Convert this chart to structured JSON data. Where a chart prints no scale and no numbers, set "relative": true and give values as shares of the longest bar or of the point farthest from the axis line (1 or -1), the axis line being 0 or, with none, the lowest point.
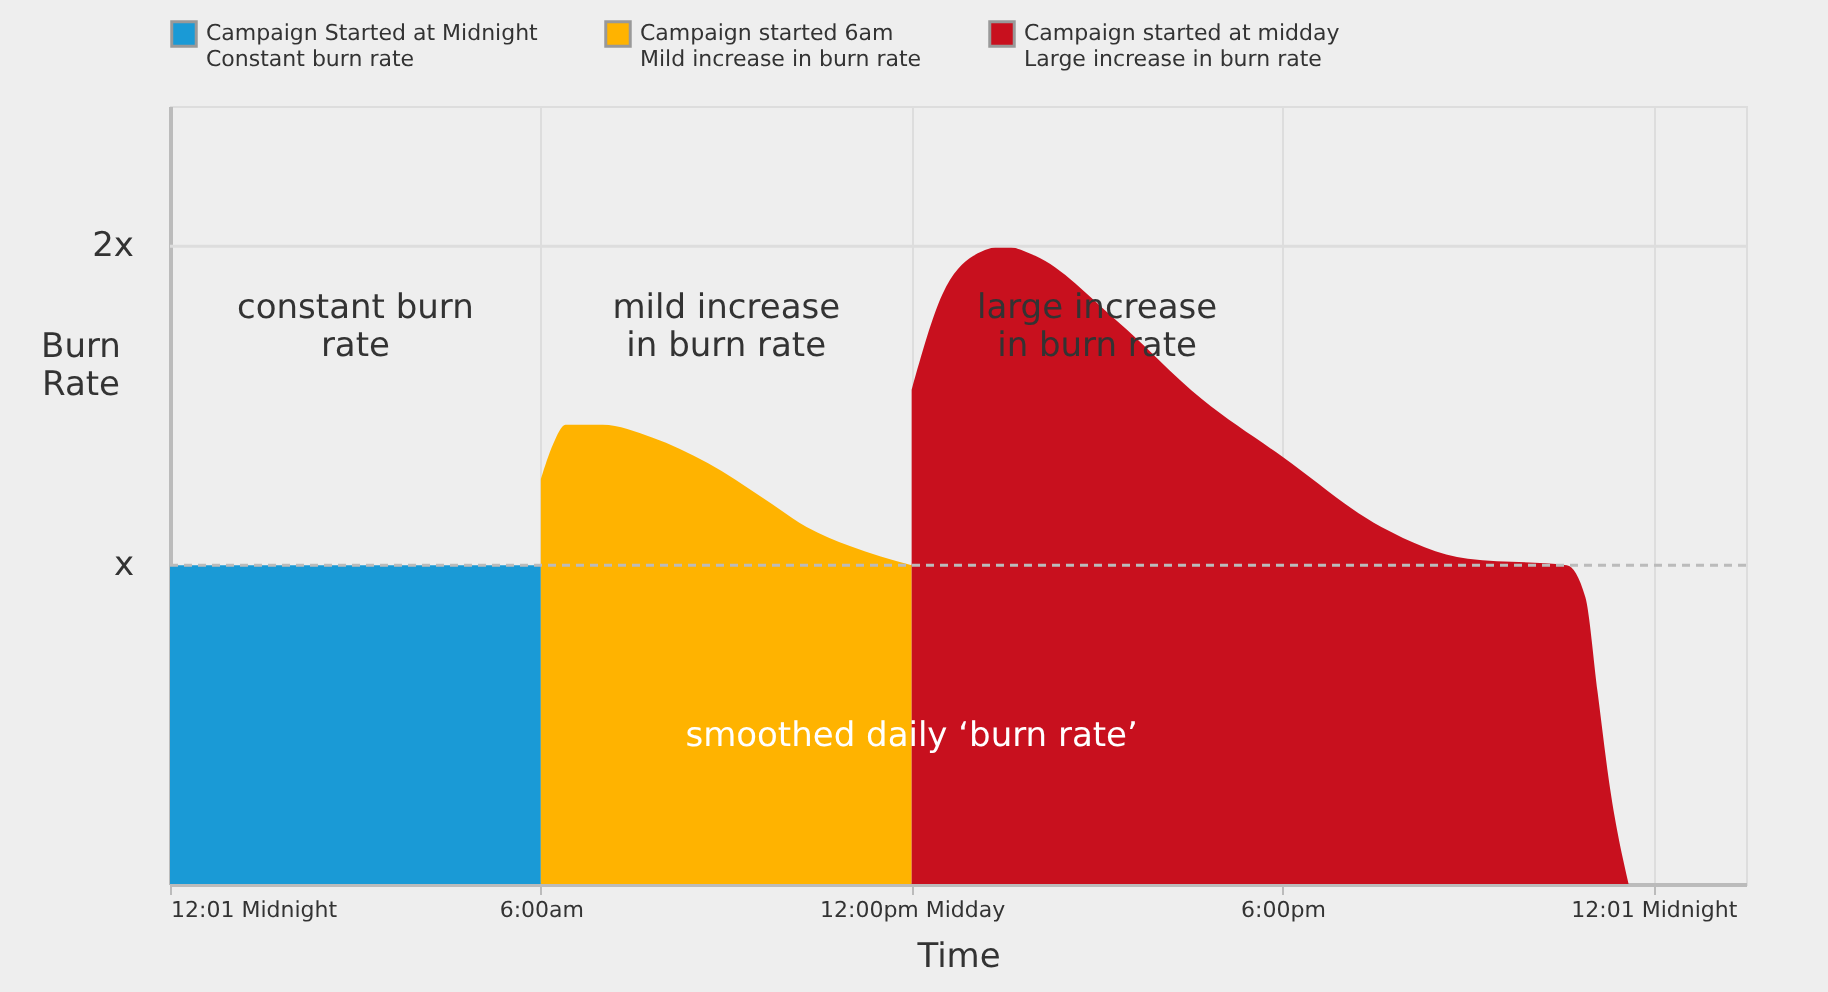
{
  "chart_data": {
    "type": "area",
    "relative": true,
    "xlabel": "Time",
    "ylabel": "Burn Rate",
    "xlim": [
      0,
      25.5
    ],
    "xticks": [
      {
        "value": 0,
        "label": "12:01 Midnight"
      },
      {
        "value": 6,
        "label": "6:00am"
      },
      {
        "value": 12,
        "label": "12:00pm Midday"
      },
      {
        "value": 18,
        "label": "6:00pm"
      },
      {
        "value": 24,
        "label": "12:01 Midnight"
      }
    ],
    "grid": "x",
    "legend": "top",
    "series": [
      {
        "name": "Campaign Started at Midnight\nConstant burn rate",
        "color": "#1a9ad6",
        "x": [
          0,
          6
        ],
        "values": [
          0.5,
          0.5
        ]
      },
      {
        "name": "Campaign started 6am\nMild increase in burn rate",
        "color": "#ffb300",
        "x": [
          6,
          6.2,
          6.4,
          7,
          7.8,
          8.7,
          9.6,
          10.3,
          11,
          12
        ],
        "values": [
          0.635,
          0.69,
          0.72,
          0.72,
          0.7,
          0.66,
          0.605,
          0.56,
          0.53,
          0.5
        ]
      },
      {
        "name": "Campaign started at midday\nLarge increase in burn rate",
        "color": "#c8101e",
        "x": [
          12,
          12.5,
          13,
          13.5,
          14,
          15.3,
          16.7,
          18,
          19.6,
          21,
          22.6,
          22.9,
          23.1,
          23.3,
          23.6
        ],
        "values": [
          0.775,
          0.925,
          0.985,
          1,
          0.985,
          0.885,
          0.76,
          0.67,
          0.56,
          0.51,
          0.5,
          0.45,
          0.3,
          0.15,
          0
        ]
      }
    ],
    "ref_lines": [
      {
        "axis": "y",
        "value": 0.5,
        "label": "x",
        "color": "#bbbbbb",
        "line_style": "dashed"
      },
      {
        "axis": "y",
        "value": 1,
        "label": "2x",
        "color": "#dddddd",
        "line_style": "solid"
      }
    ],
    "annotations": [
      "constant burn\nrate",
      "mild increase\nin burn rate",
      "large increase\nin burn rate",
      "smoothed daily ‘burn rate’"
    ]
  }
}
